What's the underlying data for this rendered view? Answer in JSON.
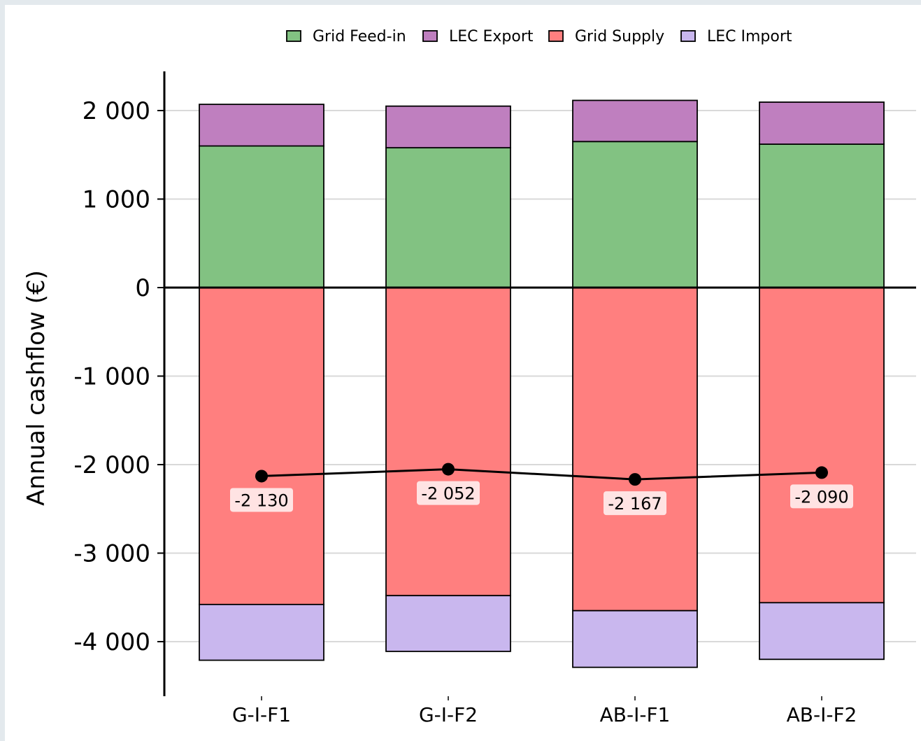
{
  "chart_data": {
    "type": "bar",
    "stacked": true,
    "categories": [
      "G-I-F1",
      "G-I-F2",
      "AB-I-F1",
      "AB-I-F2"
    ],
    "ylabel": "Annual cashflow (€)",
    "xlabel": "",
    "title": "",
    "ylim": [
      -4600,
      2450
    ],
    "yticks": [
      2000,
      1000,
      0,
      -1000,
      -2000,
      -3000,
      -4000
    ],
    "ytick_labels": [
      "2 000",
      "1 000",
      "0",
      "-1 000",
      "-2 000",
      "-3 000",
      "-4 000"
    ],
    "grid": "horizontal",
    "legend_placement": "top-center",
    "series": [
      {
        "name": "Grid Feed-in",
        "color": "#82c282",
        "values": [
          1600,
          1580,
          1650,
          1620
        ]
      },
      {
        "name": "LEC Export",
        "color": "#bf7fbf",
        "values": [
          470,
          470,
          465,
          475
        ]
      },
      {
        "name": "Grid Supply",
        "color": "#ff7f7f",
        "values": [
          -3580,
          -3480,
          -3650,
          -3560
        ]
      },
      {
        "name": "LEC Import",
        "color": "#c9b7ee",
        "values": [
          -630,
          -630,
          -640,
          -640
        ]
      }
    ],
    "net_line": {
      "values": [
        -2130,
        -2052,
        -2167,
        -2090
      ],
      "labels": [
        "-2 130",
        "-2 052",
        "-2 167",
        "-2 090"
      ],
      "color": "#000000"
    }
  }
}
